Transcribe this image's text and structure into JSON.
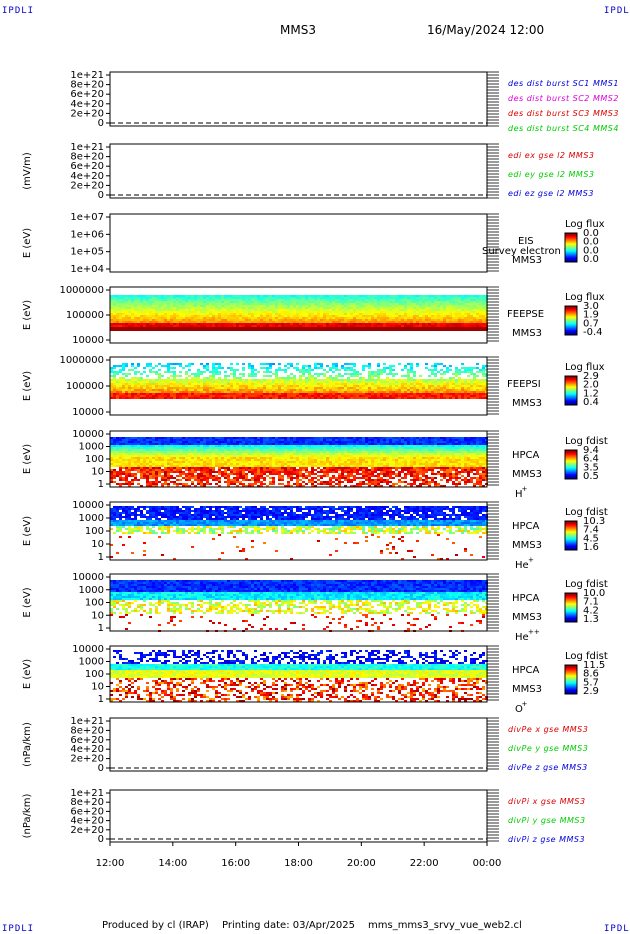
{
  "header": {
    "corner_left_top": "IPDLI",
    "corner_right_top": "IPDLI",
    "corner_left_bottom": "IPDLI",
    "corner_right_bottom": "IPDLI",
    "spacecraft": "MMS3",
    "datetime": "16/May/2024 12:00"
  },
  "footer": {
    "produced": "Produced by cl (IRAP)",
    "printing": "Printing date: 03/Apr/2025",
    "file": "mms_mms3_srvy_vue_web2.cl"
  },
  "colors": {
    "blue": "#0000dd",
    "magenta": "#dd00dd",
    "red": "#dd0000",
    "green": "#00cc00"
  },
  "chart_data": [
    {
      "type": "line",
      "ylabel": "",
      "yticks": [
        "1e+21",
        "8e+20",
        "6e+20",
        "4e+20",
        "2e+20",
        "0"
      ],
      "legend": [
        {
          "text": "des dist burst SC1 MMS1",
          "color": "#0000dd"
        },
        {
          "text": "des dist burst SC2 MMS2",
          "color": "#dd00dd"
        },
        {
          "text": "des dist burst SC3 MMS3",
          "color": "#dd0000"
        },
        {
          "text": "des dist burst SC4 MMS4",
          "color": "#00cc00"
        }
      ]
    },
    {
      "type": "line",
      "ylabel": "(mV/m)",
      "yticks": [
        "1e+21",
        "8e+20",
        "6e+20",
        "4e+20",
        "2e+20",
        "0"
      ],
      "legend": [
        {
          "text": "edi ex gse l2 MMS3",
          "color": "#dd0000"
        },
        {
          "text": "edi ey gse l2 MMS3",
          "color": "#00cc00"
        },
        {
          "text": "edi ez gse l2 MMS3",
          "color": "#0000dd"
        }
      ]
    },
    {
      "type": "heatmap",
      "ylabel": "E (eV)",
      "yticks": [
        "1e+07",
        "1e+06",
        "1e+05",
        "1e+04"
      ],
      "instrument": [
        "EIS",
        "MMS3"
      ],
      "overlay": "Survey electron to",
      "cbar_title": "Log flux",
      "cbar_ticks": [
        "0.0",
        "0.0",
        "0.0",
        "0.0"
      ],
      "empty": true
    },
    {
      "type": "heatmap",
      "ylabel": "E (eV)",
      "yticks": [
        "1000000",
        "100000",
        "10000"
      ],
      "instrument": [
        "FEEPSE",
        "MMS3"
      ],
      "cbar_title": "Log flux",
      "cbar_ticks": [
        "3.0",
        "1.9",
        "0.7",
        "-0.4"
      ],
      "kind": "feepse"
    },
    {
      "type": "heatmap",
      "ylabel": "E (eV)",
      "yticks": [
        "1000000",
        "100000",
        "10000"
      ],
      "instrument": [
        "FEEPSI",
        "MMS3"
      ],
      "cbar_title": "Log flux",
      "cbar_ticks": [
        "2.9",
        "2.0",
        "1.2",
        "0.4"
      ],
      "kind": "feepsi"
    },
    {
      "type": "heatmap",
      "ylabel": "E (eV)",
      "yticks": [
        "10000",
        "1000",
        "100",
        "10",
        "1"
      ],
      "instrument": [
        "HPCA",
        "MMS3"
      ],
      "species": "H",
      "charge": "+",
      "cbar_title": "Log fdist",
      "cbar_ticks": [
        "9.4",
        "6.4",
        "3.5",
        "0.5"
      ],
      "kind": "hplus"
    },
    {
      "type": "heatmap",
      "ylabel": "E (eV)",
      "yticks": [
        "10000",
        "1000",
        "100",
        "10",
        "1"
      ],
      "instrument": [
        "HPCA",
        "MMS3"
      ],
      "species": "He",
      "charge": "+",
      "cbar_title": "Log fdist",
      "cbar_ticks": [
        "10.3",
        "7.4",
        "4.5",
        "1.6"
      ],
      "kind": "heplus"
    },
    {
      "type": "heatmap",
      "ylabel": "E (eV)",
      "yticks": [
        "10000",
        "1000",
        "100",
        "10",
        "1"
      ],
      "instrument": [
        "HPCA",
        "MMS3"
      ],
      "species": "He",
      "charge": "++",
      "cbar_title": "Log fdist",
      "cbar_ticks": [
        "10.0",
        "7.1",
        "4.2",
        "1.3"
      ],
      "kind": "heplusplus"
    },
    {
      "type": "heatmap",
      "ylabel": "E (eV)",
      "yticks": [
        "10000",
        "1000",
        "100",
        "10",
        "1"
      ],
      "instrument": [
        "HPCA",
        "MMS3"
      ],
      "species": "O",
      "charge": "+",
      "cbar_title": "Log fdist",
      "cbar_ticks": [
        "11.5",
        "8.6",
        "5.7",
        "2.9"
      ],
      "kind": "oplus"
    },
    {
      "type": "line",
      "ylabel": "(nPa/km)",
      "yticks": [
        "1e+21",
        "8e+20",
        "6e+20",
        "4e+20",
        "2e+20",
        "0"
      ],
      "legend": [
        {
          "text": "divPe x gse MMS3",
          "color": "#dd0000"
        },
        {
          "text": "divPe y gse MMS3",
          "color": "#00cc00"
        },
        {
          "text": "divPe z gse MMS3",
          "color": "#0000dd"
        }
      ]
    },
    {
      "type": "line",
      "ylabel": "(nPa/km)",
      "yticks": [
        "1e+21",
        "8e+20",
        "6e+20",
        "4e+20",
        "2e+20",
        "0"
      ],
      "legend": [
        {
          "text": "divPi x gse MMS3",
          "color": "#dd0000"
        },
        {
          "text": "divPi y gse MMS3",
          "color": "#00cc00"
        },
        {
          "text": "divPi z gse MMS3",
          "color": "#0000dd"
        }
      ]
    }
  ],
  "xaxis": {
    "ticks": [
      "12:00",
      "14:00",
      "16:00",
      "18:00",
      "20:00",
      "22:00",
      "00:00"
    ]
  }
}
